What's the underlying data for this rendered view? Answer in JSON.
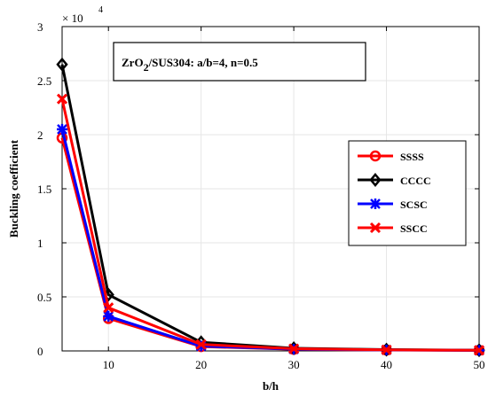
{
  "chart_data": {
    "type": "line",
    "title": "",
    "xlabel": "b/h",
    "ylabel": "Buckling coefficient",
    "y_multiplier_base": "× 10",
    "y_multiplier_exp": "4",
    "xlim": [
      5,
      50
    ],
    "ylim": [
      0,
      3
    ],
    "x_ticks": [
      "10",
      "20",
      "30",
      "40",
      "50"
    ],
    "y_ticks": [
      "0",
      "0.5",
      "1",
      "1.5",
      "2",
      "2.5",
      "3"
    ],
    "grid": true,
    "legend_position": "right",
    "annotation": {
      "prefix": "ZrO",
      "sub": "2",
      "suffix": "/SUS304: a/b=4, n=0.5"
    },
    "x": [
      5,
      10,
      20,
      30,
      40,
      50
    ],
    "series": [
      {
        "name": "SSSS",
        "color": "#ff0000",
        "marker": "circle",
        "values": [
          1.97,
          0.3,
          0.04,
          0.015,
          0.008,
          0.005
        ]
      },
      {
        "name": "CCCC",
        "color": "#000000",
        "marker": "diamond",
        "values": [
          2.65,
          0.52,
          0.08,
          0.025,
          0.012,
          0.007
        ]
      },
      {
        "name": "SCSC",
        "color": "#0000ff",
        "marker": "star",
        "values": [
          2.05,
          0.32,
          0.045,
          0.016,
          0.009,
          0.005
        ]
      },
      {
        "name": "SSCC",
        "color": "#ff0000",
        "marker": "x",
        "values": [
          2.33,
          0.4,
          0.06,
          0.02,
          0.01,
          0.006
        ]
      }
    ]
  }
}
